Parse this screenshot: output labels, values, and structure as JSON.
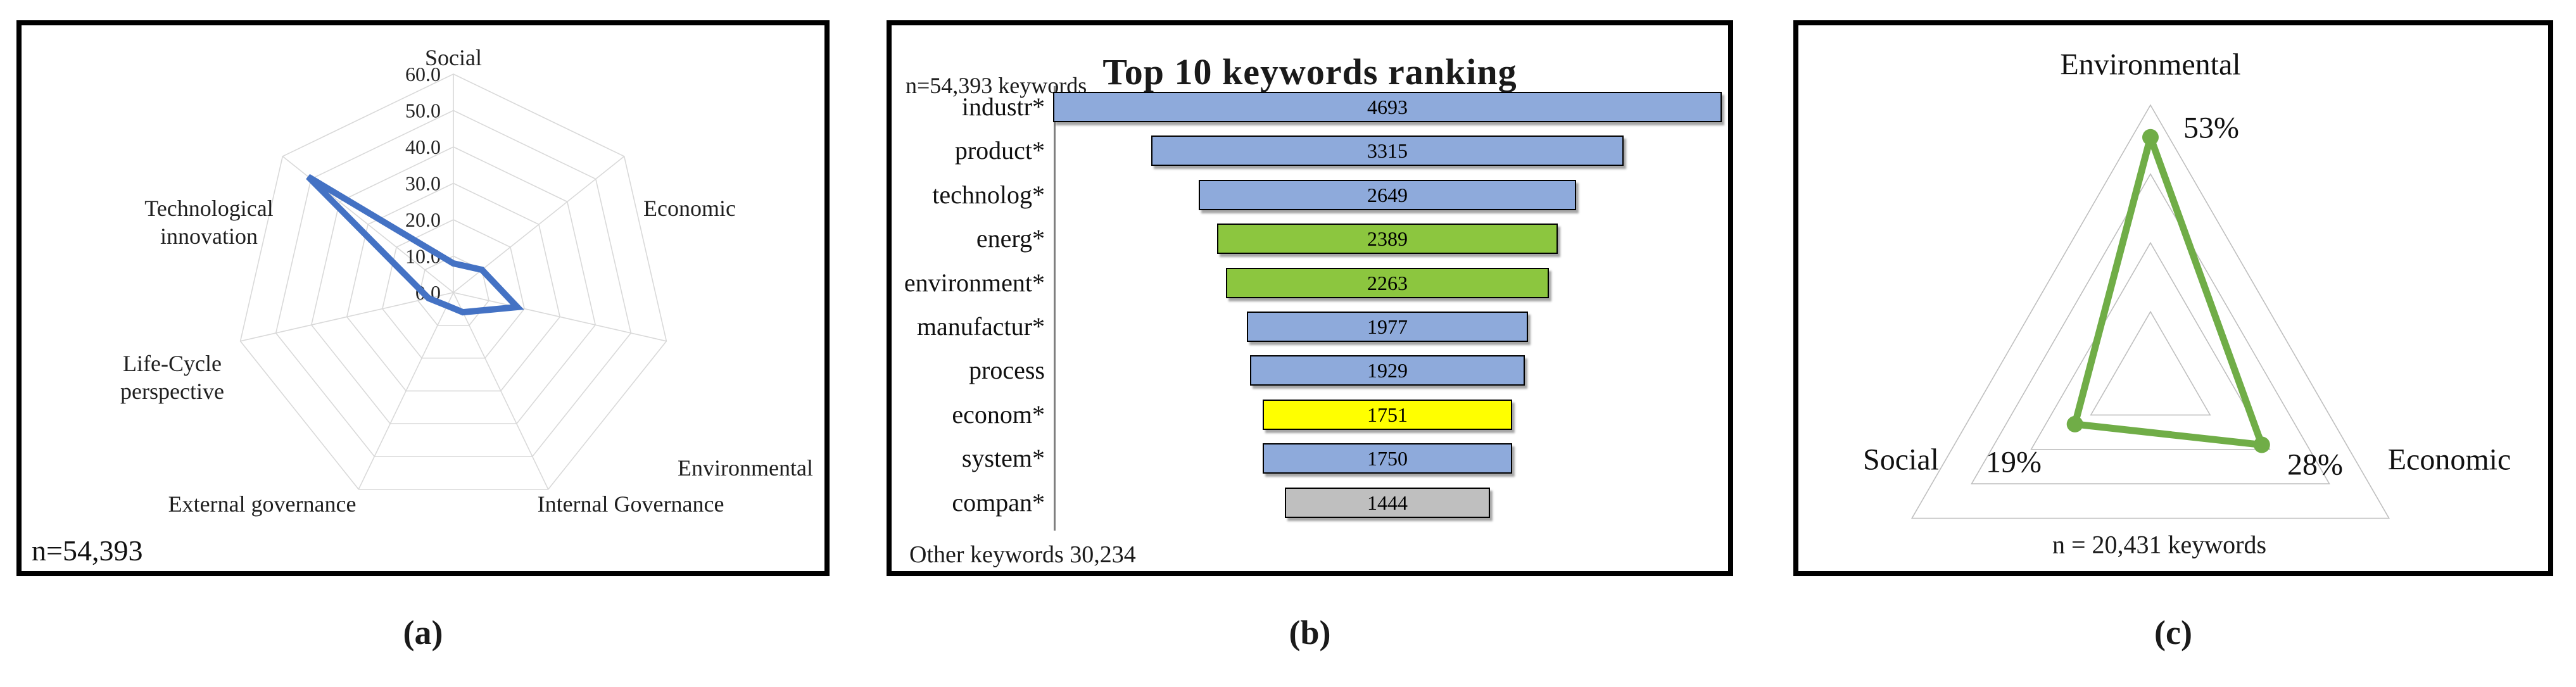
{
  "figure": {
    "captions": {
      "a": "(a)",
      "b": "(b)",
      "c": "(c)"
    }
  },
  "chart_data": [
    {
      "type": "radar",
      "panel": "a",
      "axes": [
        "Social",
        "Economic",
        "Environmental",
        "Internal Governance",
        "External governance",
        "Life-Cycle perspective",
        "Technological innovation"
      ],
      "values": [
        8,
        10,
        18,
        6,
        4,
        7,
        51
      ],
      "max": 60,
      "rings": [
        10,
        20,
        30,
        40,
        50,
        60
      ],
      "tick_labels": [
        "0.0",
        "10.0",
        "20.0",
        "30.0",
        "40.0",
        "50.0",
        "60.0"
      ],
      "note": "n=54,393",
      "line_color": "#4472C4",
      "grid_color": "#D9D9D9",
      "legend": "none"
    },
    {
      "type": "bar",
      "panel": "b",
      "title": "Top 10 keywords ranking",
      "note_top": "n=54,393 keywords",
      "note_bottom": "Other keywords 30,234",
      "orientation": "horizontal-centered",
      "items": [
        {
          "label": "industr*",
          "value": 4693,
          "color": "#8EAADB"
        },
        {
          "label": "product*",
          "value": 3315,
          "color": "#8EAADB"
        },
        {
          "label": "technolog*",
          "value": 2649,
          "color": "#8EAADB"
        },
        {
          "label": "energ*",
          "value": 2389,
          "color": "#8CC63F"
        },
        {
          "label": "environment*",
          "value": 2263,
          "color": "#8CC63F"
        },
        {
          "label": "manufactur*",
          "value": 1977,
          "color": "#8EAADB"
        },
        {
          "label": "process",
          "value": 1929,
          "color": "#8EAADB"
        },
        {
          "label": "econom*",
          "value": 1751,
          "color": "#FFFF00"
        },
        {
          "label": "system*",
          "value": 1750,
          "color": "#8EAADB"
        },
        {
          "label": "compan*",
          "value": 1444,
          "color": "#BFBFBF"
        }
      ]
    },
    {
      "type": "radar",
      "panel": "c",
      "axes": [
        "Environmental",
        "Economic",
        "Social"
      ],
      "values": [
        53,
        28,
        19
      ],
      "value_labels": [
        "53%",
        "28%",
        "19%"
      ],
      "max": 60,
      "rings": [
        15,
        30,
        45,
        60
      ],
      "note": "n = 20,431 keywords",
      "line_color": "#70AD47",
      "grid_color": "#BFBFBF",
      "marker": "circle"
    }
  ]
}
